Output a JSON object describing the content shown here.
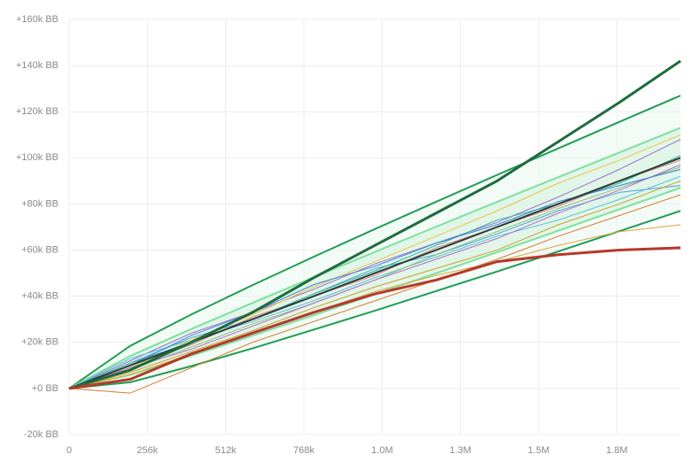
{
  "chart_data": {
    "type": "line",
    "x": [
      0,
      200000,
      400000,
      600000,
      800000,
      1000000,
      1200000,
      1400000,
      1600000,
      1800000,
      2000000
    ],
    "xlim": [
      0,
      2000000
    ],
    "xticks": [
      0,
      {
        "value": 256000,
        "label": "256k"
      },
      {
        "value": 512000,
        "label": "512k"
      },
      {
        "value": 768000,
        "label": "768k"
      },
      {
        "value": 1024000,
        "label": "1.0M"
      },
      {
        "value": 1280000,
        "label": "1.3M"
      },
      {
        "value": 1536000,
        "label": "1.5M"
      },
      {
        "value": 1792000,
        "label": "1.8M"
      }
    ],
    "ylim": [
      -20000,
      160000
    ],
    "yticks": [
      {
        "value": -20000,
        "label": "-20k BB"
      },
      {
        "value": 0,
        "label": "+0 BB"
      },
      {
        "value": 20000,
        "label": "+20k BB"
      },
      {
        "value": 40000,
        "label": "+40k BB"
      },
      {
        "value": 60000,
        "label": "+60k BB"
      },
      {
        "value": 80000,
        "label": "+80k BB"
      },
      {
        "value": 100000,
        "label": "+100k BB"
      },
      {
        "value": 120000,
        "label": "+120k BB"
      },
      {
        "value": 140000,
        "label": "+140k BB"
      },
      {
        "value": 160000,
        "label": "+160k BB"
      }
    ],
    "grid": true,
    "bands": [
      {
        "color": "#1f9d55",
        "fill": "#eaf8ef",
        "upper": [
          0,
          18500,
          32100,
          44800,
          57100,
          69100,
          80900,
          92600,
          104100,
          115600,
          127000
        ],
        "lower": [
          0,
          2700,
          9700,
          17400,
          25500,
          33700,
          42200,
          50700,
          59400,
          68200,
          77000
        ]
      },
      {
        "color": "#7ee0a0",
        "fill": "#d6f2e0",
        "upper": [
          0,
          14100,
          25800,
          37100,
          48200,
          59200,
          70100,
          80900,
          91600,
          102300,
          113000
        ],
        "lower": [
          0,
          5900,
          14200,
          22900,
          31800,
          40800,
          49900,
          59100,
          68400,
          77700,
          87000
        ]
      }
    ],
    "series": [
      {
        "color": "#e1a53a",
        "line_width": 1,
        "values": [
          0,
          6000,
          15000,
          24000,
          33000,
          42000,
          49000,
          55000,
          62000,
          68000,
          71000
        ]
      },
      {
        "color": "#d87a2c",
        "line_width": 1,
        "values": [
          0,
          -2000,
          9000,
          20000,
          29000,
          38000,
          47000,
          56000,
          66000,
          75000,
          84000
        ]
      },
      {
        "color": "#4aa3df",
        "line_width": 1,
        "values": [
          0,
          11000,
          22000,
          30000,
          41000,
          52000,
          58000,
          67000,
          77000,
          85000,
          88000
        ]
      },
      {
        "color": "#9b6fd0",
        "line_width": 1,
        "values": [
          0,
          12000,
          24000,
          33000,
          43000,
          54000,
          63000,
          72000,
          83000,
          95000,
          108000
        ]
      },
      {
        "color": "#e57d8a",
        "line_width": 1,
        "values": [
          0,
          10000,
          19000,
          31000,
          40000,
          49000,
          61000,
          70000,
          79000,
          90000,
          99000
        ]
      },
      {
        "color": "#5bc0de",
        "line_width": 1,
        "values": [
          0,
          13000,
          21000,
          29000,
          38000,
          48000,
          57000,
          66000,
          73000,
          82000,
          92000
        ]
      },
      {
        "color": "#e8c547",
        "line_width": 1,
        "values": [
          0,
          9000,
          21000,
          32000,
          44000,
          55000,
          66000,
          77000,
          89000,
          99000,
          110000
        ]
      },
      {
        "color": "#8cc084",
        "line_width": 1,
        "values": [
          0,
          8000,
          18000,
          28000,
          37000,
          47000,
          58000,
          68000,
          78000,
          87000,
          96000
        ]
      },
      {
        "color": "#2bb3a0",
        "line_width": 1,
        "values": [
          0,
          11000,
          20000,
          30000,
          41000,
          51000,
          62000,
          73000,
          80000,
          89000,
          101000
        ]
      },
      {
        "color": "#b86bc4",
        "line_width": 1,
        "values": [
          0,
          9000,
          17000,
          27000,
          37000,
          47000,
          56000,
          65000,
          76000,
          86000,
          97000
        ]
      },
      {
        "color": "#3f7fd6",
        "line_width": 1,
        "values": [
          0,
          10000,
          23000,
          33000,
          45000,
          53000,
          63000,
          71000,
          81000,
          88000,
          95000
        ]
      },
      {
        "color": "#c9a227",
        "line_width": 1,
        "values": [
          0,
          7000,
          16000,
          25000,
          35000,
          44000,
          52000,
          60000,
          71000,
          80000,
          90000
        ]
      },
      {
        "color": "#2d3a35",
        "line_width": 2,
        "values": [
          0,
          10000,
          20000,
          30000,
          40000,
          50000,
          60000,
          70000,
          80000,
          90000,
          100000
        ]
      },
      {
        "color": "#1e6b3f",
        "line_width": 3,
        "values": [
          0,
          8000,
          20000,
          33000,
          48000,
          62000,
          76000,
          90000,
          107000,
          124000,
          142000
        ]
      },
      {
        "color": "#b5392b",
        "line_width": 3,
        "values": [
          0,
          4000,
          15000,
          24000,
          33000,
          41000,
          47000,
          55000,
          58000,
          60000,
          61000
        ]
      }
    ]
  }
}
